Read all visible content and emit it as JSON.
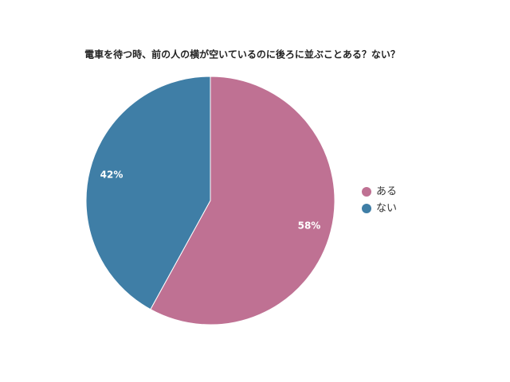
{
  "chart_data": {
    "type": "pie",
    "title": "電車を待つ時、前の人の横が空いているのに後ろに並ぶことある？ない？",
    "categories": [
      "ある",
      "ない"
    ],
    "values": [
      58,
      42
    ],
    "value_labels": [
      "58%",
      "42%"
    ],
    "colors": [
      "#bf7193",
      "#3f7ea6"
    ],
    "legend": "right"
  }
}
